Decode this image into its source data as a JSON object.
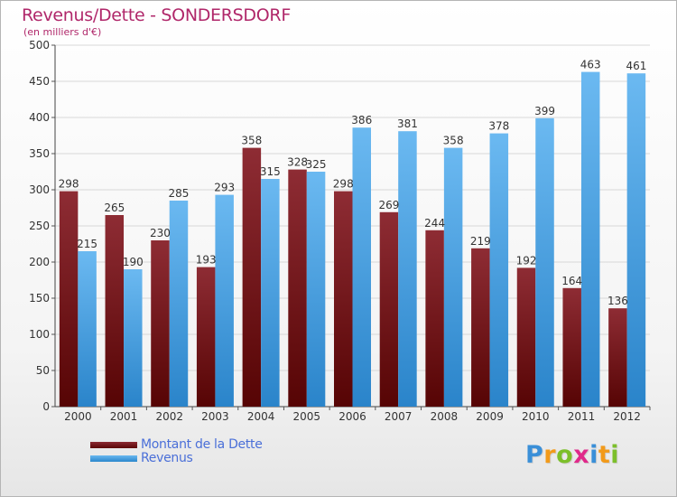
{
  "title": "Revenus/Dette - SONDERSDORF",
  "subtitle": "(en milliers d'€)",
  "legend": {
    "debt_label": "Montant de la Dette",
    "revenue_label": "Revenus"
  },
  "logo": {
    "text": "Proxiti",
    "letters": [
      "P",
      "r",
      "o",
      "x",
      "i",
      "t",
      "i"
    ],
    "colors": [
      "#3a8fd8",
      "#f29a1a",
      "#7cbf2a",
      "#e0298a",
      "#3a8fd8",
      "#f29a1a",
      "#7cbf2a"
    ]
  },
  "colors": {
    "debt_top": "#8e2c34",
    "debt_bottom": "#560404",
    "revenue_top": "#6bb9f1",
    "revenue_bottom": "#2a84ca",
    "title": "#b0276a"
  },
  "chart_data": {
    "type": "bar",
    "title": "Revenus/Dette - SONDERSDORF",
    "ylabel": "(en milliers d'€)",
    "xlabel": "",
    "categories": [
      "2000",
      "2001",
      "2002",
      "2003",
      "2004",
      "2005",
      "2006",
      "2007",
      "2008",
      "2009",
      "2010",
      "2011",
      "2012"
    ],
    "series": [
      {
        "name": "Montant de la Dette",
        "values": [
          298,
          265,
          230,
          193,
          358,
          328,
          298,
          269,
          244,
          219,
          192,
          164,
          136
        ]
      },
      {
        "name": "Revenus",
        "values": [
          215,
          190,
          285,
          293,
          315,
          325,
          386,
          381,
          358,
          378,
          399,
          463,
          461
        ]
      }
    ],
    "ylim": [
      0,
      500
    ],
    "yticks": [
      "0",
      "50",
      "100",
      "150",
      "200",
      "250",
      "300",
      "350",
      "400",
      "450",
      "500"
    ],
    "grid": true,
    "legend_position": "bottom-left"
  }
}
